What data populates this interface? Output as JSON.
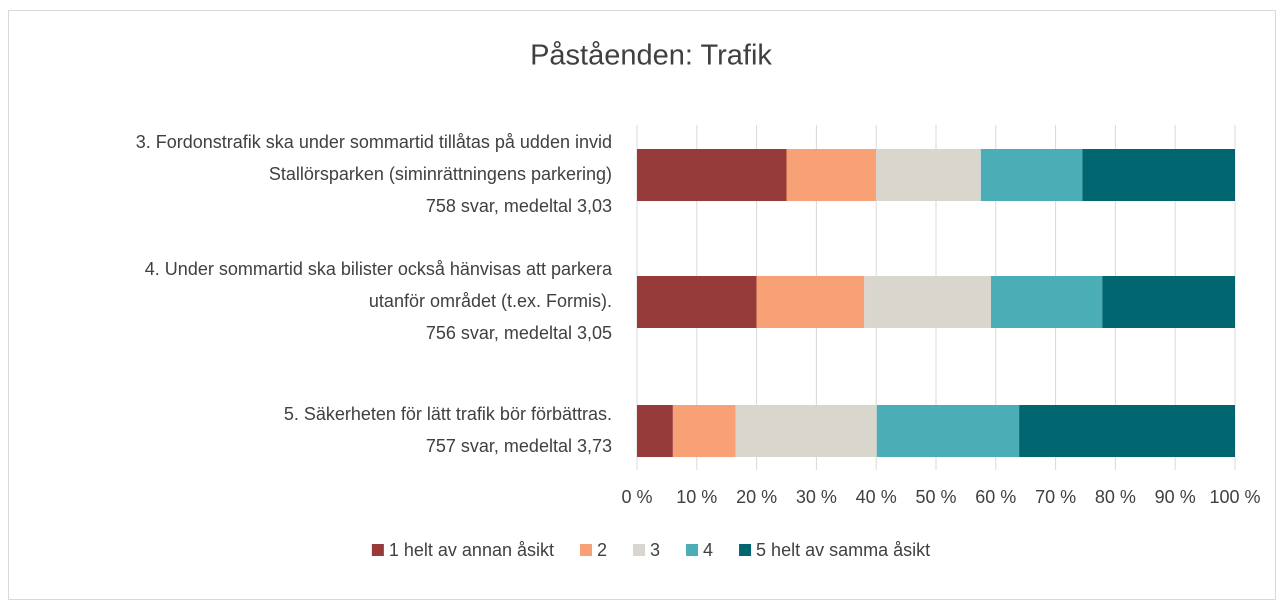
{
  "chart_data": {
    "type": "stacked_bar_horizontal",
    "title": "Påståenden: Trafik",
    "categories": [
      [
        "3. Fordonstrafik ska under sommartid tillåtas på udden invid",
        "Stallörsparken (siminrättningens parkering)",
        "758 svar, medeltal 3,03"
      ],
      [
        "4. Under sommartid ska bilister också hänvisas att parkera",
        "utanför området (t.ex. Formis).",
        "756 svar, medeltal 3,05"
      ],
      [
        "5. Säkerheten för lätt trafik bör förbättras.",
        "757 svar, medeltal 3,73"
      ]
    ],
    "series": [
      {
        "name": "1 helt av annan åsikt",
        "color": "#963b3a",
        "values": [
          25,
          20,
          6
        ]
      },
      {
        "name": "2",
        "color": "#f8a177",
        "values": [
          15,
          18,
          10.5
        ]
      },
      {
        "name": "3",
        "color": "#d9d6ce",
        "values": [
          17.5,
          21.2,
          23.6
        ]
      },
      {
        "name": "4",
        "color": "#4badb6",
        "values": [
          17,
          18.6,
          23.8
        ]
      },
      {
        "name": "5 helt av samma åsikt",
        "color": "#016670",
        "values": [
          25.5,
          22.2,
          36.1
        ]
      }
    ],
    "xlim": [
      0,
      100
    ],
    "xticks": [
      {
        "value": 0,
        "label": "0 %"
      },
      {
        "value": 10,
        "label": "10 %"
      },
      {
        "value": 20,
        "label": "20 %"
      },
      {
        "value": 30,
        "label": "30 %"
      },
      {
        "value": 40,
        "label": "40 %"
      },
      {
        "value": 50,
        "label": "50 %"
      },
      {
        "value": 60,
        "label": "60 %"
      },
      {
        "value": 70,
        "label": "70 %"
      },
      {
        "value": 80,
        "label": "80 %"
      },
      {
        "value": 90,
        "label": "90 %"
      },
      {
        "value": 100,
        "label": "100 %"
      }
    ],
    "grid": true,
    "legend": "bottom"
  }
}
